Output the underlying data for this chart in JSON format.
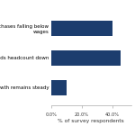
{
  "categories": [
    "purchases falling below\nwages",
    "needs headcount down",
    "growth remains steady"
  ],
  "values": [
    40,
    45,
    10
  ],
  "bar_color": "#1c3d6e",
  "xlabel": "% of survey respondents",
  "xlim": [
    0,
    52
  ],
  "xticks": [
    0,
    20,
    40
  ],
  "xtick_labels": [
    "0.0%",
    "20.0%",
    "40.0%"
  ],
  "background_color": "#ffffff",
  "label_fontsize": 4.0,
  "xlabel_fontsize": 4.2,
  "tick_fontsize": 3.6,
  "bar_height": 0.5
}
